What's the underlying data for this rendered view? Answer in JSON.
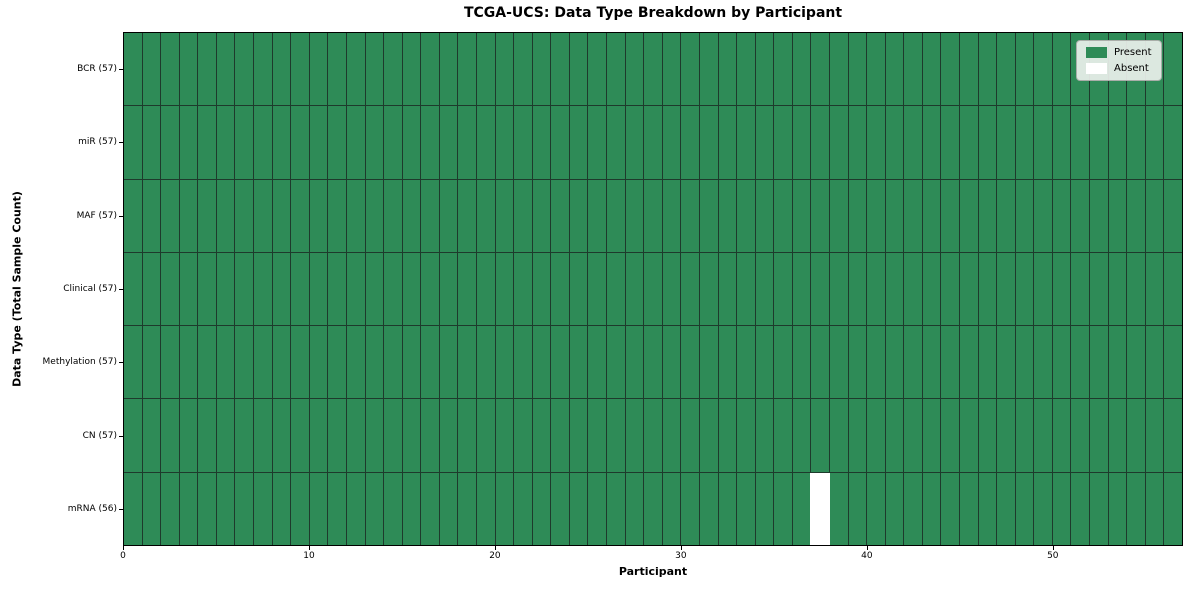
{
  "chart_data": {
    "type": "heatmap",
    "title": "TCGA-UCS: Data Type Breakdown by Participant",
    "xlabel": "Participant",
    "ylabel": "Data Type (Total Sample Count)",
    "x_ticks": [
      0,
      10,
      20,
      30,
      40,
      50
    ],
    "n_participants": 57,
    "x_range": [
      0,
      57
    ],
    "rows": [
      {
        "name": "BCR",
        "label": "BCR (57)",
        "total": 57,
        "absent_participants": []
      },
      {
        "name": "miR",
        "label": "miR (57)",
        "total": 57,
        "absent_participants": []
      },
      {
        "name": "MAF",
        "label": "MAF (57)",
        "total": 57,
        "absent_participants": []
      },
      {
        "name": "Clinical",
        "label": "Clinical (57)",
        "total": 57,
        "absent_participants": []
      },
      {
        "name": "Methylation",
        "label": "Methylation (57)",
        "total": 57,
        "absent_participants": []
      },
      {
        "name": "CN",
        "label": "CN (57)",
        "total": 57,
        "absent_participants": []
      },
      {
        "name": "mRNA",
        "label": "mRNA (56)",
        "total": 56,
        "absent_participants": [
          37
        ]
      }
    ],
    "legend": {
      "position": "upper right",
      "entries": [
        {
          "name": "present",
          "label": "Present",
          "color": "#2e8b57"
        },
        {
          "name": "absent",
          "label": "Absent",
          "color": "#ffffff"
        }
      ]
    },
    "colors": {
      "present": "#2e8b57",
      "absent": "#ffffff",
      "cell_edge": "#1e3a2c",
      "spine": "#000000",
      "background": "#ffffff"
    },
    "grid": "cell-borders-on",
    "legend_visible": true
  }
}
